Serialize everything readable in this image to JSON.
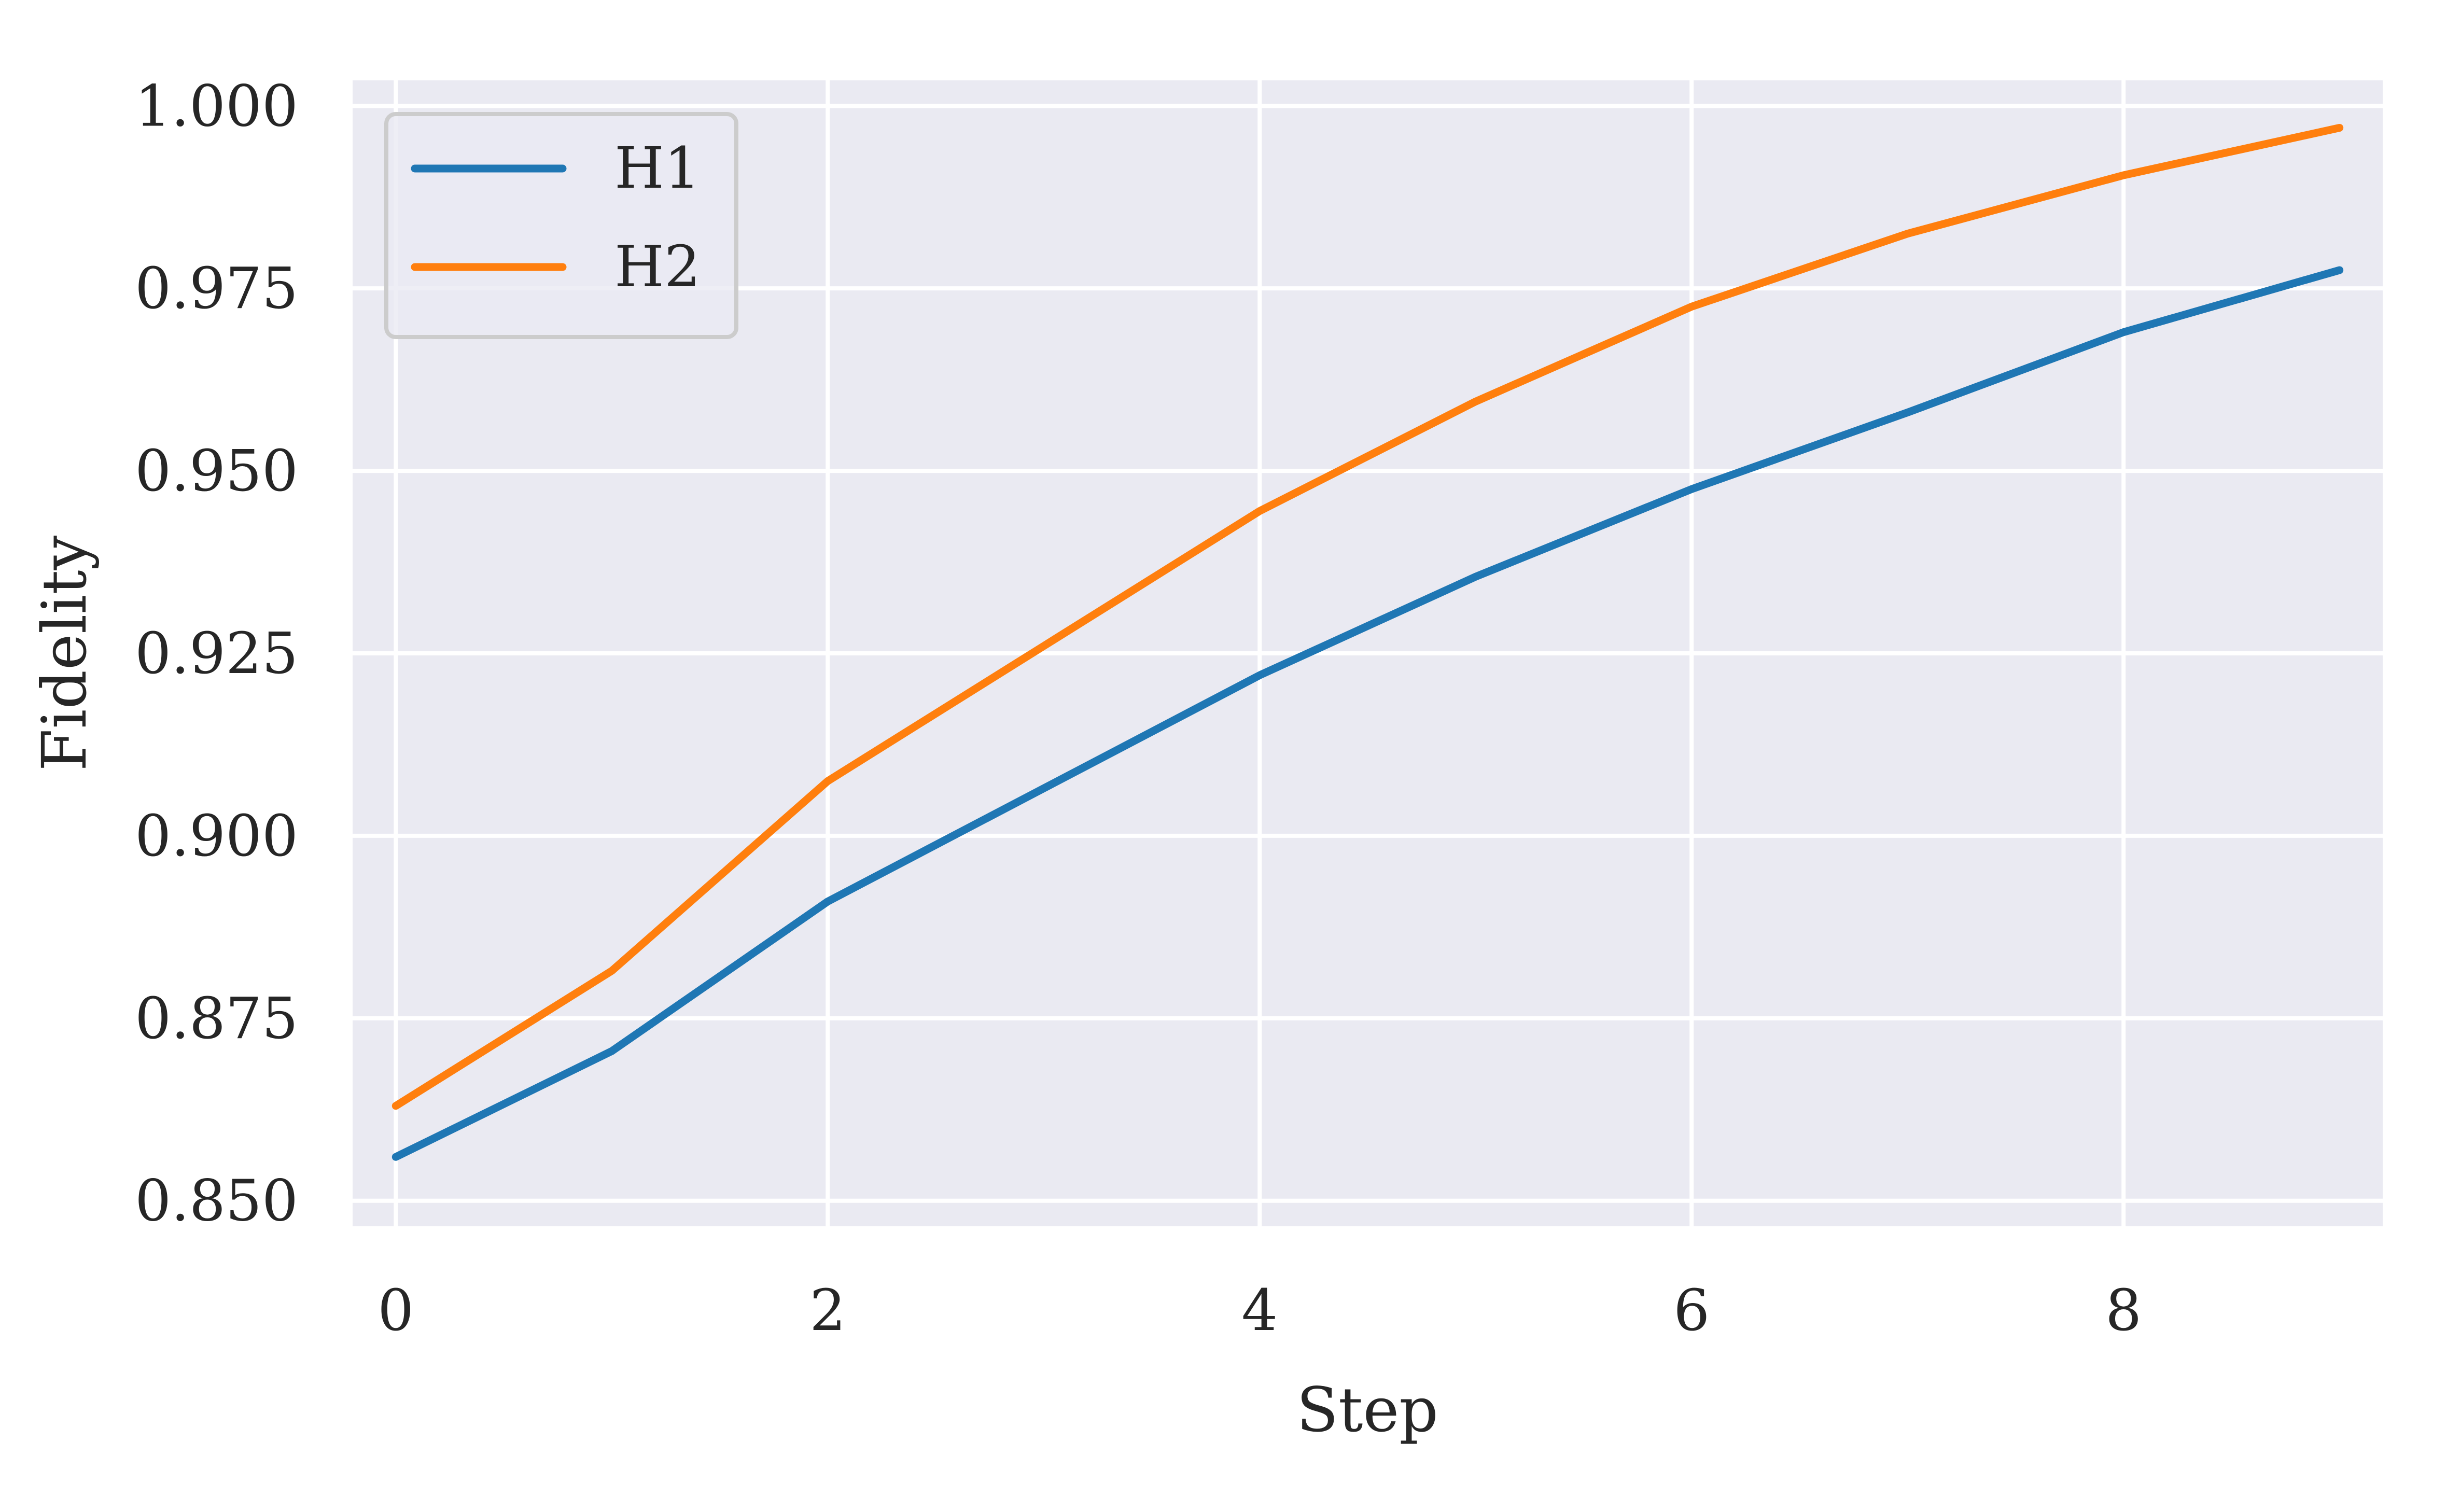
{
  "chart_data": {
    "type": "line",
    "title": "",
    "xlabel": "Step",
    "ylabel": "Fidelity",
    "x": [
      0,
      1,
      2,
      3,
      4,
      5,
      6,
      7,
      8,
      9
    ],
    "xlim": [
      -0.2,
      9.2
    ],
    "ylim": [
      0.8465,
      1.0035
    ],
    "xticks": [
      0,
      2,
      4,
      6,
      8
    ],
    "yticks": [
      0.85,
      0.875,
      0.9,
      0.925,
      0.95,
      0.975,
      1.0
    ],
    "xtick_labels": [
      "0",
      "2",
      "4",
      "6",
      "8"
    ],
    "ytick_labels": [
      "0.850",
      "0.875",
      "0.900",
      "0.925",
      "0.950",
      "0.975",
      "1.000"
    ],
    "grid": true,
    "legend_position": "top-left",
    "series": [
      {
        "name": "H1",
        "color": "#1f77b4",
        "values": [
          0.856,
          0.8705,
          0.891,
          0.9065,
          0.922,
          0.9355,
          0.9475,
          0.958,
          0.969,
          0.9775
        ]
      },
      {
        "name": "H2",
        "color": "#ff7f0e",
        "values": [
          0.863,
          0.8815,
          0.9075,
          0.926,
          0.9445,
          0.9595,
          0.9725,
          0.9825,
          0.9905,
          0.997
        ]
      }
    ],
    "colors": {
      "plot_background": "#eaeaf2",
      "grid": "#ffffff",
      "text": "#262626"
    }
  }
}
